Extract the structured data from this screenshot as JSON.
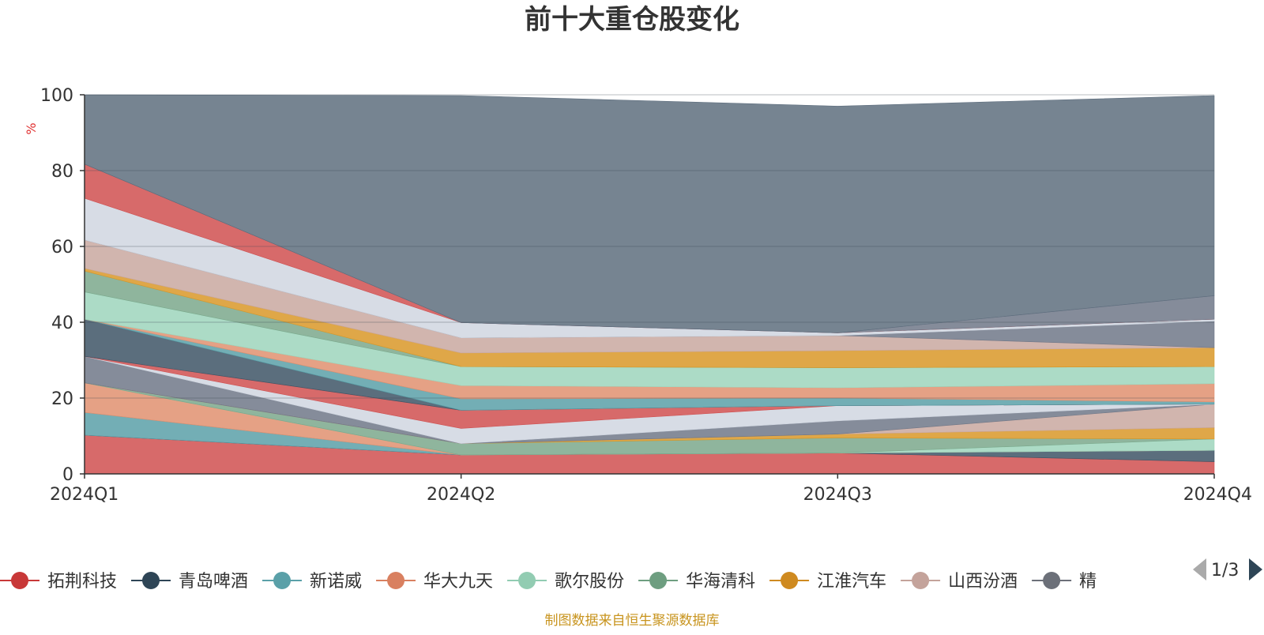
{
  "chart_data": {
    "type": "area",
    "stacked": true,
    "title": "前十大重仓股变化",
    "ylabel": "%",
    "ylim": [
      0,
      100
    ],
    "yticks": [
      0,
      20,
      40,
      60,
      80,
      100
    ],
    "grid": true,
    "categories": [
      "2024Q1",
      "2024Q2",
      "2024Q3",
      "2024Q4"
    ],
    "series": [
      {
        "name": "拓荆科技",
        "color": "#d05050",
        "values": [
          10.2,
          5.0,
          5.5,
          3.2
        ]
      },
      {
        "name": "青岛啤酒",
        "color": "#3e5566",
        "values": [
          0,
          0,
          0,
          3.0
        ]
      },
      {
        "name": "新诺威",
        "color": "#5aa0a8",
        "values": [
          6.0,
          0,
          0,
          0
        ]
      },
      {
        "name": "华大九天",
        "color": "#e09070",
        "values": [
          7.8,
          0,
          0,
          0
        ]
      },
      {
        "name": "歌尔股份",
        "color": "#9dd5bc",
        "values": [
          0,
          0,
          0,
          3.0
        ]
      },
      {
        "name": "华海清科",
        "color": "#7ba88c",
        "values": [
          0,
          3.0,
          4.0,
          0
        ]
      },
      {
        "name": "江淮汽车",
        "color": "#d99828",
        "values": [
          0,
          0,
          1.0,
          3.0
        ]
      },
      {
        "name": "山西汾酒",
        "color": "#c9a8a0",
        "values": [
          0,
          0,
          0,
          6.2
        ]
      },
      {
        "name": "精测电子",
        "color": "#707888",
        "values": [
          7.0,
          0,
          3.5,
          0
        ]
      },
      {
        "name": "",
        "color": "#d0d6e0",
        "values": [
          0,
          4.0,
          4.0,
          0
        ]
      },
      {
        "name": "",
        "color": "#d05050",
        "values": [
          0,
          4.8,
          0,
          0
        ]
      },
      {
        "name": "",
        "color": "#3e5566",
        "values": [
          9.8,
          0,
          0,
          0
        ]
      },
      {
        "name": "",
        "color": "#5aa0a8",
        "values": [
          0,
          3.0,
          2.0,
          0.6
        ]
      },
      {
        "name": "",
        "color": "#e09070",
        "values": [
          0,
          3.5,
          2.7,
          4.8
        ]
      },
      {
        "name": "",
        "color": "#9dd5bc",
        "values": [
          7.2,
          5.0,
          5.3,
          4.5
        ]
      },
      {
        "name": "",
        "color": "#7ba88c",
        "values": [
          5.5,
          0,
          0,
          0
        ]
      },
      {
        "name": "",
        "color": "#d99828",
        "values": [
          0.7,
          3.6,
          4.5,
          5.0
        ]
      },
      {
        "name": "",
        "color": "#c9a8a0",
        "values": [
          7.5,
          4.0,
          4.0,
          0
        ]
      },
      {
        "name": "",
        "color": "#707888",
        "values": [
          0,
          0,
          0,
          7.0
        ]
      },
      {
        "name": "",
        "color": "#d0d6e0",
        "values": [
          11.0,
          4.0,
          0.7,
          0.5
        ]
      },
      {
        "name": "",
        "color": "#d05050",
        "values": [
          9.0,
          0,
          0,
          0
        ]
      },
      {
        "name": "",
        "color": "#707888",
        "values": [
          0,
          0,
          0,
          6.2
        ]
      },
      {
        "name": "",
        "color": "#5e6e7e",
        "values": [
          18.3,
          59.9,
          59.8,
          52.8
        ]
      }
    ],
    "legend": {
      "position": "bottom",
      "items": [
        "拓荆科技",
        "青岛啤酒",
        "新诺威",
        "华大九天",
        "歌尔股份",
        "华海清科",
        "江淮汽车",
        "山西汾酒",
        "精测电子"
      ],
      "visible_items": [
        "拓荆科技",
        "青岛啤酒",
        "新诺威",
        "华大九天",
        "歌尔股份",
        "华海清科",
        "江淮汽车",
        "山西汾酒",
        "精"
      ],
      "colors": [
        "#c83838",
        "#2e4556",
        "#5aa0a8",
        "#d98060",
        "#92ccb2",
        "#6e9e80",
        "#cf8a20",
        "#c4a39b",
        "#6c7079"
      ],
      "page": "1/3"
    }
  },
  "footer": {
    "source": "制图数据来自恒生聚源数据库"
  }
}
